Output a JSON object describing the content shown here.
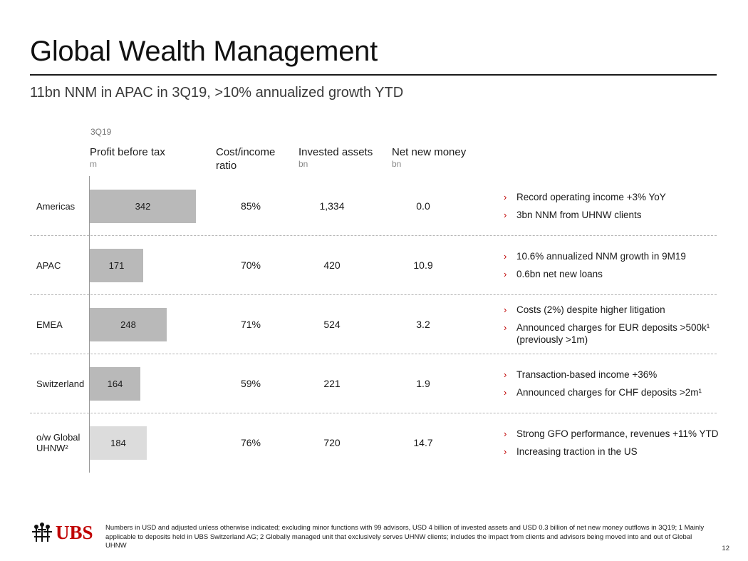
{
  "header": {
    "title": "Global Wealth Management",
    "subtitle": "11bn NNM in APAC in 3Q19, >10% annualized growth YTD"
  },
  "table": {
    "period": "3Q19",
    "columns": [
      {
        "label": "Profit before tax",
        "unit": "m"
      },
      {
        "label": "Cost/income ratio",
        "unit": ""
      },
      {
        "label": "Invested assets",
        "unit": "bn"
      },
      {
        "label": "Net new money",
        "unit": "bn"
      }
    ],
    "rows": [
      {
        "region": "Americas",
        "profit": 342,
        "profit_label": "342",
        "cost_income": "85%",
        "invested_assets": "1,334",
        "nnm": "0.0",
        "bar_color": "#b9b9b9",
        "bullets": [
          "Record operating income +3% YoY",
          "3bn NNM from UHNW clients"
        ]
      },
      {
        "region": "APAC",
        "profit": 171,
        "profit_label": "171",
        "cost_income": "70%",
        "invested_assets": "420",
        "nnm": "10.9",
        "bar_color": "#b9b9b9",
        "bullets": [
          "10.6% annualized NNM growth in 9M19",
          "0.6bn net new loans"
        ]
      },
      {
        "region": "EMEA",
        "profit": 248,
        "profit_label": "248",
        "cost_income": "71%",
        "invested_assets": "524",
        "nnm": "3.2",
        "bar_color": "#b9b9b9",
        "bullets": [
          "Costs (2%) despite higher litigation",
          "Announced charges for EUR deposits >500k¹ (previously >1m)"
        ]
      },
      {
        "region": "Switzerland",
        "profit": 164,
        "profit_label": "164",
        "cost_income": "59%",
        "invested_assets": "221",
        "nnm": "1.9",
        "bar_color": "#b9b9b9",
        "bullets": [
          "Transaction-based income +36%",
          "Announced charges for CHF deposits >2m¹"
        ]
      },
      {
        "region": "o/w Global UHNW²",
        "profit": 184,
        "profit_label": "184",
        "cost_income": "76%",
        "invested_assets": "720",
        "nnm": "14.7",
        "bar_color": "#dcdcdc",
        "bullets": [
          "Strong GFO performance, revenues +11% YTD",
          "Increasing traction in the US"
        ]
      }
    ]
  },
  "footer": {
    "logo_text": "UBS",
    "logo_color": "#c00000",
    "note": "Numbers in USD and adjusted unless otherwise indicated; excluding minor functions with 99 advisors, USD 4 billion of invested assets and USD 0.3 billion of net new money outflows in 3Q19; 1 Mainly applicable to deposits held in UBS Switzerland AG; 2 Globally managed unit that exclusively serves UHNW clients; includes the impact from clients and advisors being moved into and out of Global UHNW",
    "page_number": "12"
  }
}
